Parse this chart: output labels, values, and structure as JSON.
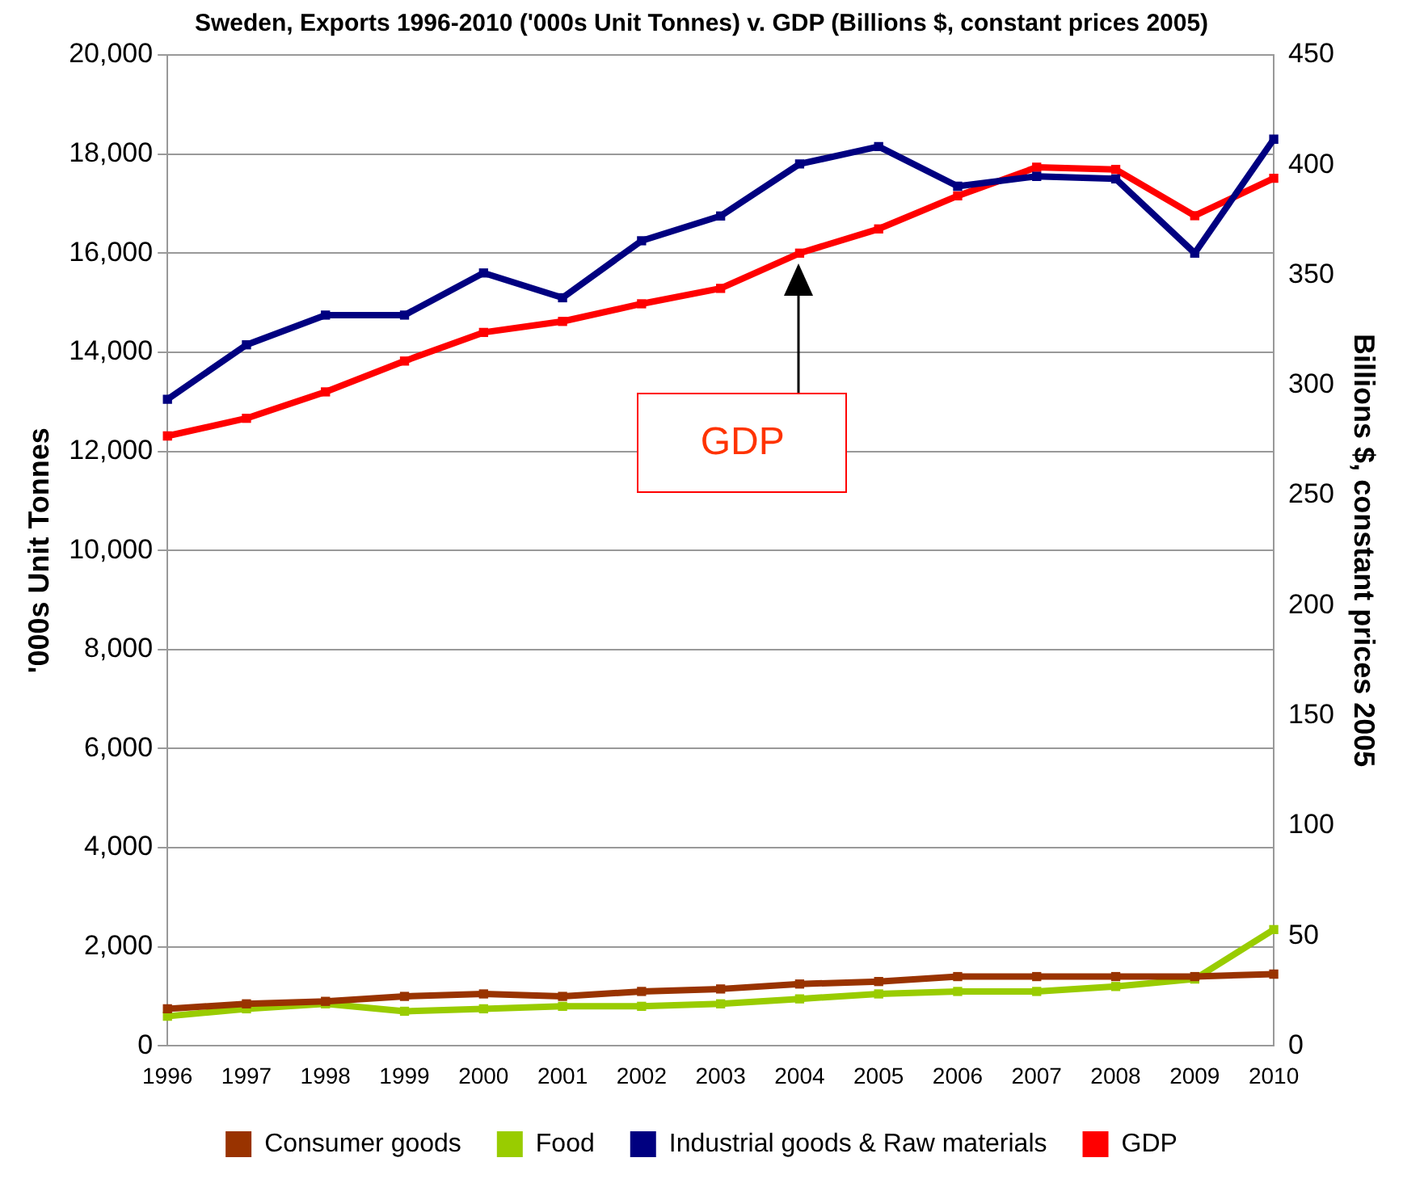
{
  "chart_data": {
    "type": "line",
    "title": "Sweden, Exports 1996-2010 ('000s Unit Tonnes) v. GDP (Billions $, constant prices 2005)",
    "ylabel": "'000s Unit Tonnes",
    "y2label": "Billions $, constant prices 2005",
    "categories": [
      "1996",
      "1997",
      "1998",
      "1999",
      "2000",
      "2001",
      "2002",
      "2003",
      "2004",
      "2005",
      "2006",
      "2007",
      "2008",
      "2009",
      "2010"
    ],
    "series": [
      {
        "name": "Consumer goods",
        "color": "#993300",
        "values": [
          750,
          850,
          900,
          1000,
          1050,
          1000,
          1100,
          1150,
          1250,
          1300,
          1400,
          1400,
          1400,
          1400,
          1450
        ]
      },
      {
        "name": "Food",
        "color": "#99cc00",
        "values": [
          600,
          750,
          850,
          700,
          750,
          800,
          800,
          850,
          950,
          1050,
          1100,
          1100,
          1200,
          1350,
          2350
        ]
      },
      {
        "name": "Industrial goods & Raw materials",
        "color": "#000080",
        "values": [
          13050,
          14150,
          14750,
          14750,
          15600,
          15100,
          16250,
          16750,
          17800,
          18150,
          17350,
          17550,
          17500,
          16000,
          18300
        ]
      },
      {
        "name": "GDP",
        "color": "#ff0000",
        "axis": "y2",
        "values": [
          277,
          285,
          297,
          311,
          324,
          329,
          337,
          344,
          360,
          371,
          386,
          399,
          398,
          377,
          394
        ]
      }
    ],
    "ylim": [
      0,
      20000
    ],
    "yticks": [
      {
        "value": 0,
        "label": "0"
      },
      {
        "value": 2000,
        "label": "2,000"
      },
      {
        "value": 4000,
        "label": "4,000"
      },
      {
        "value": 6000,
        "label": "6,000"
      },
      {
        "value": 8000,
        "label": "8,000"
      },
      {
        "value": 10000,
        "label": "10,000"
      },
      {
        "value": 12000,
        "label": "12,000"
      },
      {
        "value": 14000,
        "label": "14,000"
      },
      {
        "value": 16000,
        "label": "16,000"
      },
      {
        "value": 18000,
        "label": "18,000"
      },
      {
        "value": 20000,
        "label": "20,000"
      }
    ],
    "y2lim": [
      0,
      450
    ],
    "y2ticks": [
      0,
      50,
      100,
      150,
      200,
      250,
      300,
      350,
      400,
      450
    ],
    "annotations": [
      "GDP"
    ],
    "grid": "y",
    "legend": "bottom",
    "marker": "square",
    "line_style": "solid"
  }
}
